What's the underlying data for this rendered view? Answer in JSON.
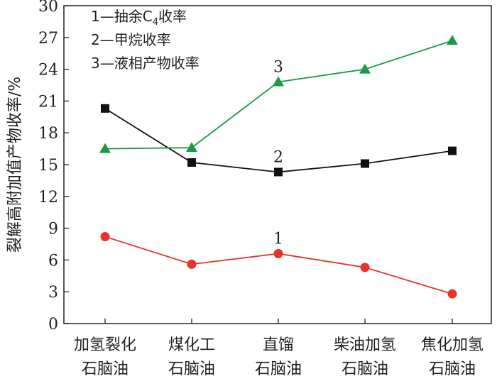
{
  "chart_data": {
    "type": "line",
    "categories": [
      [
        "加氢裂化",
        "石脑油"
      ],
      [
        "煤化工",
        "石脑油"
      ],
      [
        "直馏",
        "石脑油"
      ],
      [
        "柴油加氢",
        "石脑油"
      ],
      [
        "焦化加氢",
        "石脑油"
      ]
    ],
    "ylabel": "裂解高附加值产物收率/%",
    "ylim": [
      0,
      30
    ],
    "yticks": [
      "0",
      "3",
      "6",
      "9",
      "12",
      "15",
      "18",
      "21",
      "24",
      "27",
      "30"
    ],
    "grid": false,
    "legend_position": "top-left",
    "legend": [
      {
        "prefix": "1—抽余C",
        "sub": "4",
        "suffix": "收率"
      },
      {
        "text": "2—甲烷收率"
      },
      {
        "text": "3—液相产物收率"
      }
    ],
    "series": [
      {
        "tag": "1",
        "tag_index": 2,
        "color": "#e8322a",
        "marker": "circle",
        "values": [
          8.2,
          5.6,
          6.6,
          5.3,
          2.8
        ]
      },
      {
        "tag": "2",
        "tag_index": 2,
        "color": "#111111",
        "marker": "square",
        "values": [
          20.3,
          15.2,
          14.3,
          15.1,
          16.3
        ]
      },
      {
        "tag": "3",
        "tag_index": 2,
        "color": "#1a9a46",
        "marker": "triangle",
        "values": [
          16.5,
          16.6,
          22.8,
          24.0,
          26.7
        ]
      }
    ]
  }
}
